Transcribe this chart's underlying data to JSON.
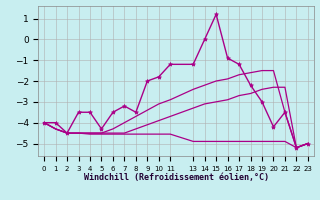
{
  "xlabel": "Windchill (Refroidissement éolien,°C)",
  "background_color": "#c8eef0",
  "grid_color": "#b0b0b0",
  "line_color": "#aa0088",
  "ylim": [
    -5.6,
    1.6
  ],
  "xlim": [
    -0.5,
    23.5
  ],
  "yticks": [
    -5,
    -4,
    -3,
    -2,
    -1,
    0,
    1
  ],
  "x_tick_positions": [
    0,
    1,
    2,
    3,
    4,
    5,
    6,
    7,
    8,
    9,
    10,
    11,
    13,
    14,
    15,
    16,
    17,
    18,
    19,
    20,
    21,
    22,
    23
  ],
  "x_tick_labels": [
    "0",
    "1",
    "2",
    "3",
    "4",
    "5",
    "6",
    "7",
    "8",
    "9",
    "10",
    "11",
    "13",
    "14",
    "15",
    "16",
    "17",
    "18",
    "19",
    "20",
    "21",
    "22",
    "23"
  ],
  "series": [
    {
      "x": [
        0,
        1,
        2,
        3,
        4,
        5,
        6,
        7,
        8,
        9,
        10,
        11,
        13,
        14,
        15,
        16,
        17,
        18,
        19,
        20,
        21,
        22,
        23
      ],
      "y": [
        -4.0,
        -4.0,
        -4.5,
        -3.5,
        -3.5,
        -4.3,
        -3.5,
        -3.2,
        -3.5,
        -2.0,
        -1.8,
        -1.2,
        -1.2,
        0.0,
        1.2,
        -0.9,
        -1.2,
        -2.2,
        -3.0,
        -4.2,
        -3.5,
        -5.2,
        -5.0
      ],
      "marker": "*",
      "linewidth": 1.0,
      "markersize": 3
    },
    {
      "x": [
        0,
        1,
        2,
        3,
        4,
        5,
        6,
        7,
        8,
        9,
        10,
        11,
        13,
        14,
        15,
        16,
        17,
        18,
        19,
        20,
        21,
        22,
        23
      ],
      "y": [
        -4.0,
        -4.3,
        -4.5,
        -4.5,
        -4.55,
        -4.55,
        -4.55,
        -4.55,
        -4.55,
        -4.55,
        -4.55,
        -4.55,
        -4.9,
        -4.9,
        -4.9,
        -4.9,
        -4.9,
        -4.9,
        -4.9,
        -4.9,
        -4.9,
        -5.2,
        -5.0
      ],
      "marker": null,
      "linewidth": 0.9
    },
    {
      "x": [
        0,
        1,
        2,
        3,
        4,
        5,
        6,
        7,
        8,
        9,
        10,
        11,
        13,
        14,
        15,
        16,
        17,
        18,
        19,
        20,
        21,
        22,
        23
      ],
      "y": [
        -4.0,
        -4.3,
        -4.5,
        -4.5,
        -4.5,
        -4.5,
        -4.5,
        -4.5,
        -4.3,
        -4.1,
        -3.9,
        -3.7,
        -3.3,
        -3.1,
        -3.0,
        -2.9,
        -2.7,
        -2.6,
        -2.4,
        -2.3,
        -2.3,
        -5.2,
        -5.0
      ],
      "marker": null,
      "linewidth": 0.9
    },
    {
      "x": [
        0,
        1,
        2,
        3,
        4,
        5,
        6,
        7,
        8,
        9,
        10,
        11,
        13,
        14,
        15,
        16,
        17,
        18,
        19,
        20,
        21,
        22,
        23
      ],
      "y": [
        -4.0,
        -4.3,
        -4.5,
        -4.5,
        -4.5,
        -4.5,
        -4.3,
        -4.0,
        -3.7,
        -3.4,
        -3.1,
        -2.9,
        -2.4,
        -2.2,
        -2.0,
        -1.9,
        -1.7,
        -1.6,
        -1.5,
        -1.5,
        -3.5,
        -5.2,
        -5.0
      ],
      "marker": null,
      "linewidth": 0.9
    }
  ]
}
